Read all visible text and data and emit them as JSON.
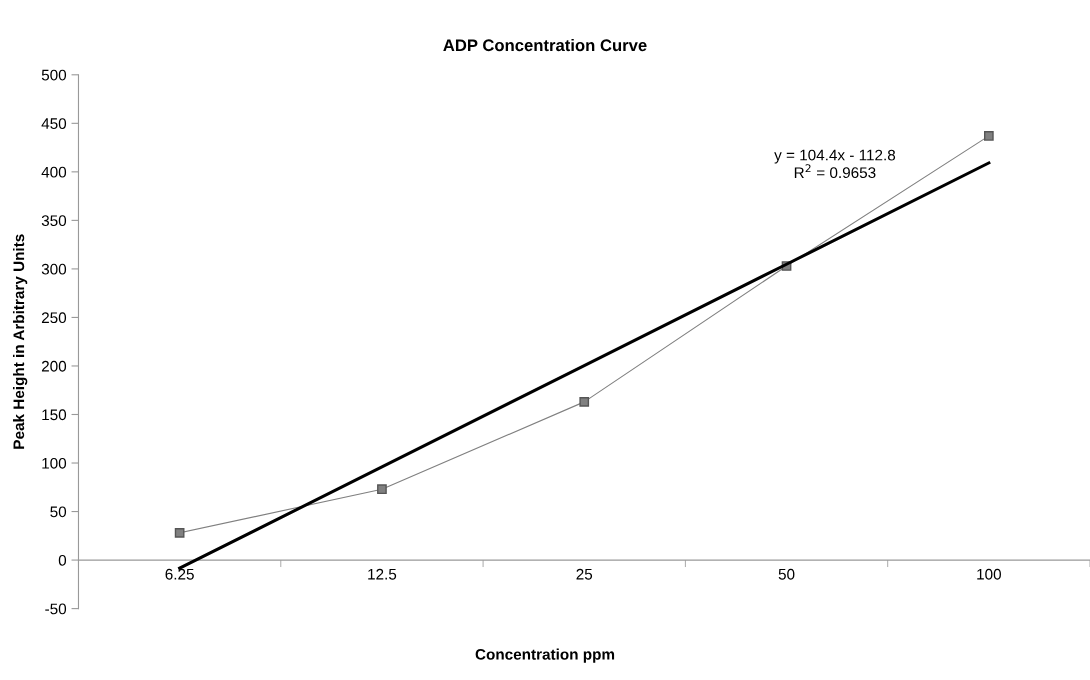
{
  "chart_data": {
    "type": "line",
    "title": "ADP Concentration Curve",
    "xlabel": "Concentration ppm",
    "ylabel": "Peak Height in Arbitrary Units",
    "categories": [
      "6.25",
      "12.5",
      "25",
      "50",
      "100"
    ],
    "series": [
      {
        "color": "#808080",
        "values": [
          28,
          73,
          163,
          303,
          437
        ],
        "marker": "square"
      },
      {
        "color": "#000000",
        "values": [
          -8.4,
          96,
          200.4,
          304.8,
          409.2
        ],
        "marker": "none"
      }
    ],
    "ylim": [
      -50,
      500
    ],
    "yticks": [
      -50,
      0,
      50,
      100,
      150,
      200,
      250,
      300,
      350,
      400,
      450,
      500
    ],
    "grid": false,
    "legend": false,
    "annotations": [
      "y = 104.4x - 112.8",
      "R$^{2}$ = 0.9653"
    ]
  }
}
